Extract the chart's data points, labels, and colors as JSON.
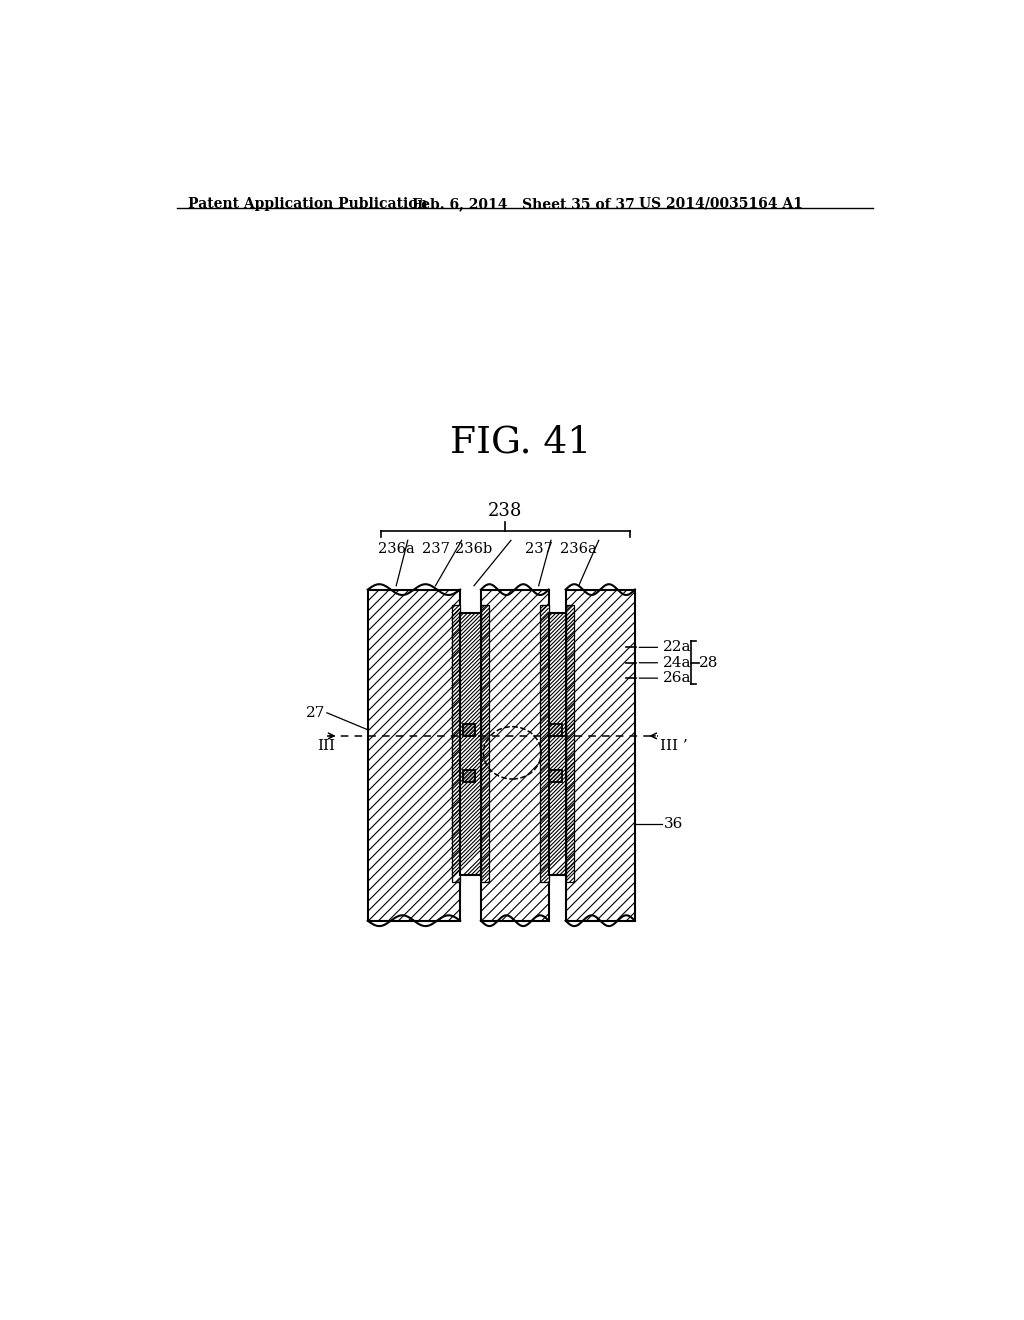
{
  "header_left": "Patent Application Publication",
  "header_mid": "Feb. 6, 2014   Sheet 35 of 37",
  "header_right": "US 2014/0035164 A1",
  "fig_label": "FIG. 41",
  "bg_color": "#ffffff",
  "line_color": "#000000",
  "label_238": "238",
  "label_236a_1": "236a",
  "label_237_1": "237",
  "label_236b": "236b",
  "label_237_2": "237",
  "label_236a_2": "236a",
  "label_22a": "22a",
  "label_24a": "24a",
  "label_26a": "26a",
  "label_28": "28",
  "label_27": "27",
  "label_36": "36",
  "label_III": "III",
  "label_IIIp": "III ’"
}
